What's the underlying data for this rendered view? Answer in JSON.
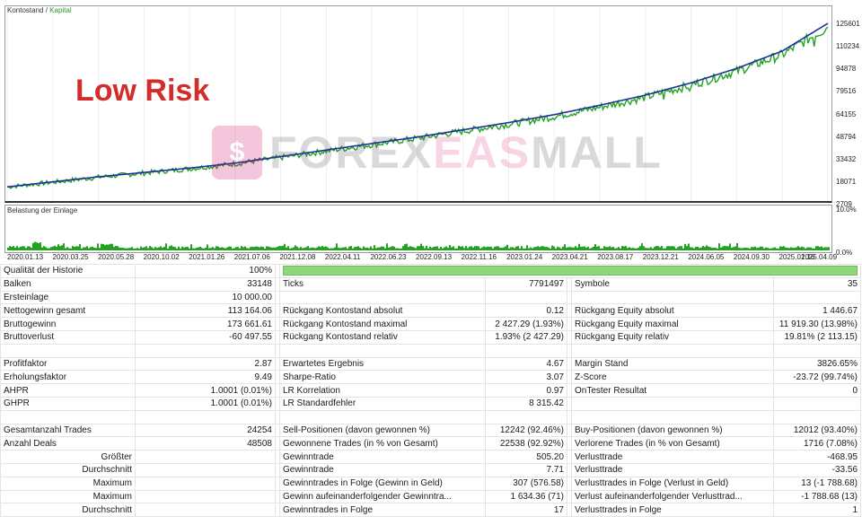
{
  "chart": {
    "legend_balance": "Kontostand",
    "legend_sep": " / ",
    "legend_equity": "Kapital",
    "sub_title": "Belastung der Einlage",
    "overlay_title": "Low Risk",
    "watermark_a": "FOREX",
    "watermark_b": "EAS",
    "watermark_c": "MALL",
    "y_labels": [
      "125601",
      "110234",
      "94878",
      "79516",
      "64155",
      "48794",
      "33432",
      "18071",
      "2709"
    ],
    "sub_y_labels": [
      "10.0%",
      "0.0%"
    ],
    "x_labels": [
      "2020.01.13",
      "2020.03.25",
      "2020.05.28",
      "2020.10.02",
      "2021.01.26",
      "2021.07.06",
      "2021.12.08",
      "2022.04.11",
      "2022.06.23",
      "2022.09.13",
      "2022.11.16",
      "2023.01.24",
      "2023.04.21",
      "2023.08.17",
      "2023.12.21",
      "2024.06.05",
      "2024.09.30",
      "2025.01.16",
      "2025.04.09"
    ],
    "colors": {
      "balance": "#1f2f9e",
      "equity": "#22a322",
      "load": "#22a322"
    }
  },
  "chart_data": {
    "type": "line",
    "x": [
      "2020.01.13",
      "2020.03.25",
      "2020.05.28",
      "2020.10.02",
      "2021.01.26",
      "2021.07.06",
      "2021.12.08",
      "2022.04.11",
      "2022.06.23",
      "2022.09.13",
      "2022.11.16",
      "2023.01.24",
      "2023.04.21",
      "2023.08.17",
      "2023.12.21",
      "2024.06.05",
      "2024.09.30",
      "2025.01.16",
      "2025.04.09"
    ],
    "series": [
      {
        "name": "Kontostand",
        "values": [
          10000,
          13500,
          17000,
          20000,
          23000,
          26500,
          31000,
          35500,
          40000,
          44500,
          49500,
          54500,
          60000,
          66500,
          73500,
          82000,
          92000,
          104000,
          123164
        ]
      },
      {
        "name": "Kapital",
        "values": [
          10000,
          13200,
          16700,
          19600,
          22600,
          26000,
          30300,
          34800,
          39200,
          43600,
          48600,
          53300,
          58700,
          65200,
          72000,
          80500,
          90000,
          101500,
          120500
        ]
      }
    ],
    "ylim": [
      2709,
      130000
    ]
  },
  "report": {
    "quality_label": "Qualität der Historie",
    "quality_value": "100%",
    "rows": [
      [
        "Balken",
        "33148",
        "Ticks",
        "7791497",
        "Symbole",
        "35"
      ],
      [
        "Ersteinlage",
        "10 000.00",
        "",
        "",
        "",
        ""
      ],
      [
        "Nettogewinn gesamt",
        "113 164.06",
        "Rückgang Kontostand absolut",
        "0.12",
        "Rückgang Equity absolut",
        "1 446.67"
      ],
      [
        "Bruttogewinn",
        "173 661.61",
        "Rückgang Kontostand maximal",
        "2 427.29 (1.93%)",
        "Rückgang Equity maximal",
        "11 919.30 (13.98%)"
      ],
      [
        "Bruttoverlust",
        "-60 497.55",
        "Rückgang Kontostand relativ",
        "1.93% (2 427.29)",
        "Rückgang Equity relativ",
        "19.81% (2 113.15)"
      ],
      [
        "",
        "",
        "",
        "",
        "",
        ""
      ],
      [
        "Profitfaktor",
        "2.87",
        "Erwartetes Ergebnis",
        "4.67",
        "Margin Stand",
        "3826.65%"
      ],
      [
        "Erholungsfaktor",
        "9.49",
        "Sharpe-Ratio",
        "3.07",
        "Z-Score",
        "-23.72 (99.74%)"
      ],
      [
        "AHPR",
        "1.0001 (0.01%)",
        "LR Korrelation",
        "0.97",
        "OnTester Resultat",
        "0"
      ],
      [
        "GHPR",
        "1.0001 (0.01%)",
        "LR Standardfehler",
        "8 315.42",
        "",
        ""
      ],
      [
        "",
        "",
        "",
        "",
        "",
        ""
      ],
      [
        "Gesamtanzahl Trades",
        "24254",
        "Sell-Positionen (davon gewonnen %)",
        "12242 (92.46%)",
        "Buy-Positionen (davon gewonnen %)",
        "12012 (93.40%)"
      ],
      [
        "Anzahl Deals",
        "48508",
        "Gewonnene Trades (in % von Gesamt)",
        "22538 (92.92%)",
        "Verlorene Trades (in % von Gesamt)",
        "1716 (7.08%)"
      ],
      [
        "Größter",
        "",
        "Gewinntrade",
        "505.20",
        "Verlusttrade",
        "-468.95"
      ],
      [
        "Durchschnitt",
        "",
        "Gewinntrade",
        "7.71",
        "Verlusttrade",
        "-33.56"
      ],
      [
        "Maximum",
        "",
        "Gewinntrades in Folge (Gewinn in Geld)",
        "307 (576.58)",
        "Verlusttrades in Folge (Verlust in Geld)",
        "13 (-1 788.68)"
      ],
      [
        "Maximum",
        "",
        "Gewinn aufeinanderfolgender Gewinntra...",
        "1 634.36 (71)",
        "Verlust aufeinanderfolgender Verlusttrad...",
        "-1 788.68 (13)"
      ],
      [
        "Durchschnitt",
        "",
        "Gewinntrades in Folge",
        "17",
        "Verlusttrades in Folge",
        "1"
      ]
    ]
  }
}
